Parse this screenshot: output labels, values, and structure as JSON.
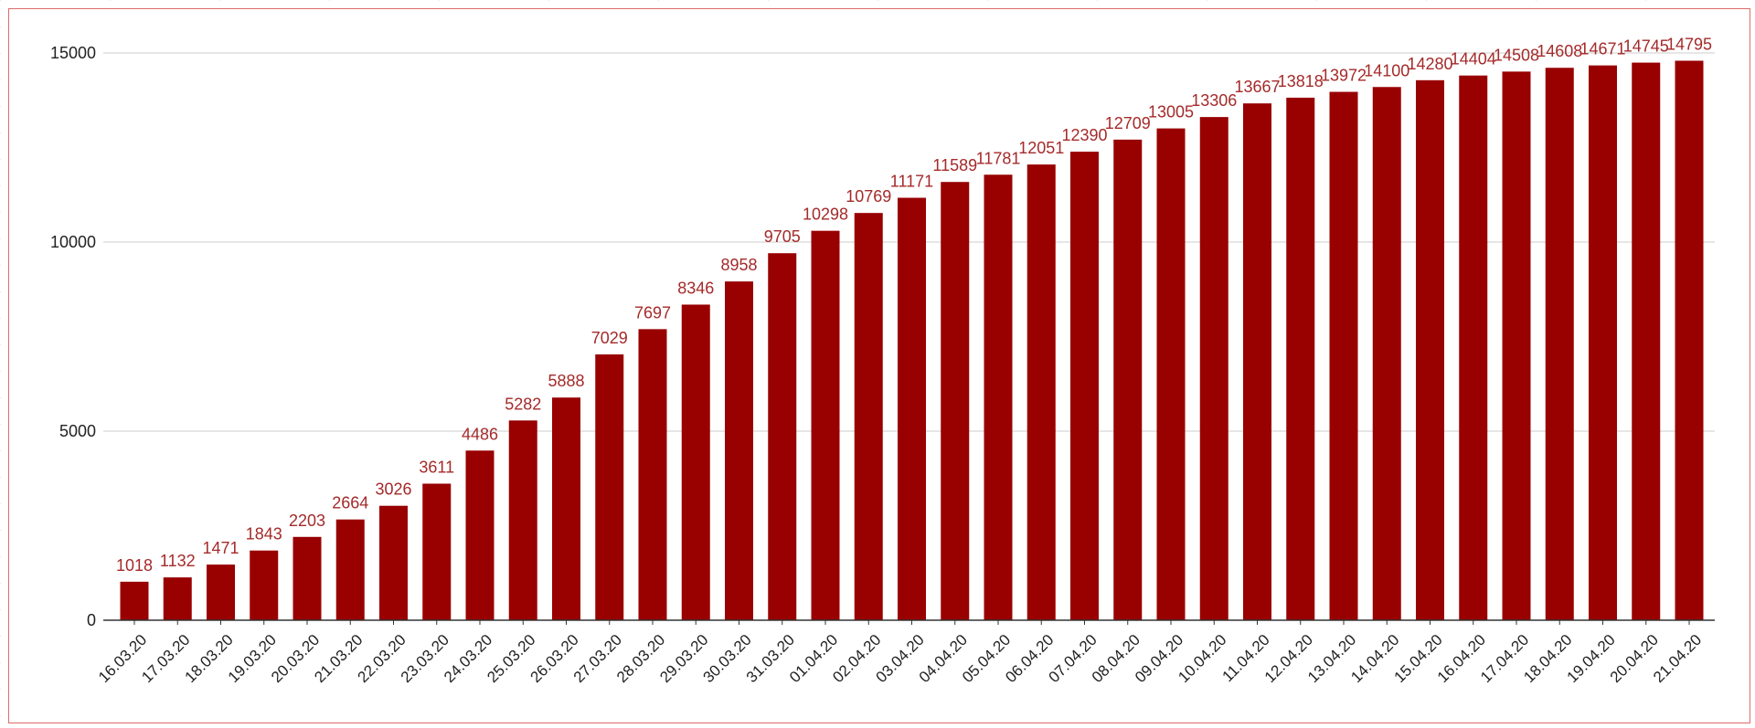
{
  "chart_data": {
    "type": "bar",
    "title": "",
    "xlabel": "",
    "ylabel": "",
    "ylim": [
      0,
      15000
    ],
    "yticks": [
      0,
      5000,
      10000,
      15000
    ],
    "grid": true,
    "bar_color": "#990000",
    "label_color": "#a52a2a",
    "categories": [
      "16.03.20",
      "17.03.20",
      "18.03.20",
      "19.03.20",
      "20.03.20",
      "21.03.20",
      "22.03.20",
      "23.03.20",
      "24.03.20",
      "25.03.20",
      "26.03.20",
      "27.03.20",
      "28.03.20",
      "29.03.20",
      "30.03.20",
      "31.03.20",
      "01.04.20",
      "02.04.20",
      "03.04.20",
      "04.04.20",
      "05.04.20",
      "06.04.20",
      "07.04.20",
      "08.04.20",
      "09.04.20",
      "10.04.20",
      "11.04.20",
      "12.04.20",
      "13.04.20",
      "14.04.20",
      "15.04.20",
      "16.04.20",
      "17.04.20",
      "18.04.20",
      "19.04.20",
      "20.04.20",
      "21.04.20"
    ],
    "values": [
      1018,
      1132,
      1471,
      1843,
      2203,
      2664,
      3026,
      3611,
      4486,
      5282,
      5888,
      7029,
      7697,
      8346,
      8958,
      9705,
      10298,
      10769,
      11171,
      11589,
      11781,
      12051,
      12390,
      12709,
      13005,
      13306,
      13667,
      13818,
      13972,
      14100,
      14280,
      14404,
      14508,
      14608,
      14671,
      14745,
      14795
    ]
  }
}
